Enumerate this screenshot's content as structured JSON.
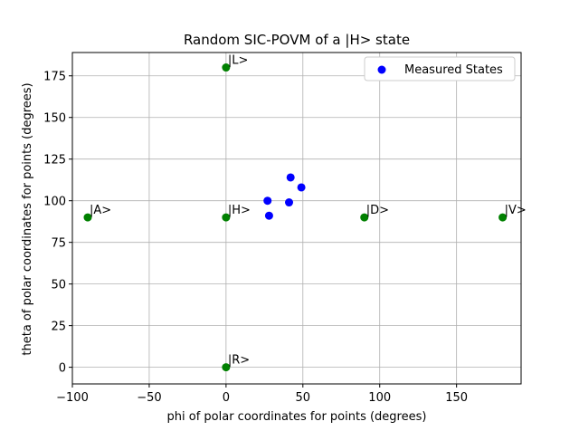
{
  "chart_data": {
    "type": "scatter",
    "title": "Random SIC-POVM of a |H> state",
    "xlabel": "phi of polar coordinates for points (degrees)",
    "ylabel": "theta of polar coordinates for points (degrees)",
    "xlim": [
      -100,
      192
    ],
    "ylim": [
      -10,
      189
    ],
    "xticks": [
      -100,
      -50,
      0,
      50,
      100,
      150
    ],
    "yticks": [
      0,
      25,
      50,
      75,
      100,
      125,
      150,
      175
    ],
    "grid": true,
    "legend": {
      "position": "top-right",
      "entries": [
        "Measured States"
      ]
    },
    "series": [
      {
        "name": "Measured States",
        "color": "#0000ff",
        "points": [
          {
            "x": 27,
            "y": 100
          },
          {
            "x": 28,
            "y": 91
          },
          {
            "x": 41,
            "y": 99
          },
          {
            "x": 42,
            "y": 114
          },
          {
            "x": 49,
            "y": 108
          }
        ]
      },
      {
        "color": "#008000",
        "points": [
          {
            "x": 0,
            "y": 180,
            "label": "|L>"
          },
          {
            "x": 0,
            "y": 90,
            "label": "|H>"
          },
          {
            "x": -90,
            "y": 90,
            "label": "|A>"
          },
          {
            "x": 90,
            "y": 90,
            "label": "|D>"
          },
          {
            "x": 180,
            "y": 90,
            "label": "|V>"
          },
          {
            "x": 0,
            "y": 0,
            "label": "|R>"
          }
        ]
      }
    ]
  }
}
